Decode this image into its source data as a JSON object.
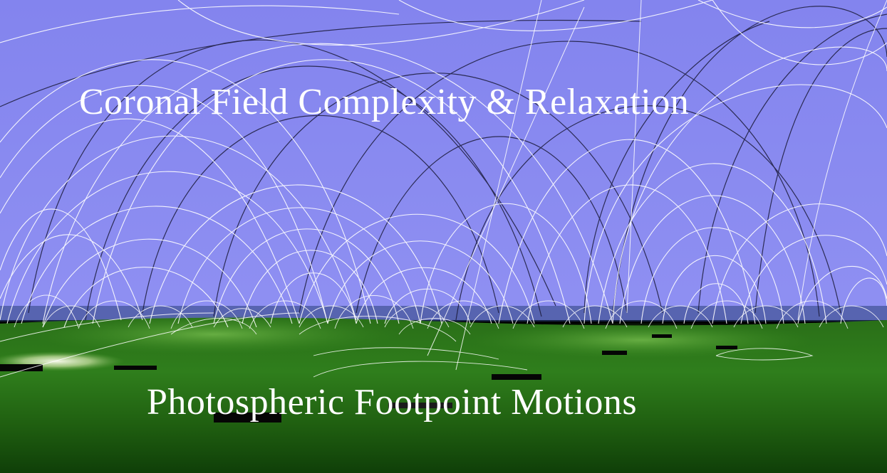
{
  "title_top": "Coronal Field Complexity & Relaxation",
  "title_bottom": "Photospheric Footpoint  Motions",
  "colors": {
    "sky": "#8b8cf0",
    "photosphere_dark": "#0f4208",
    "photosphere_mid": "#2c7b18",
    "photosphere_light": "#5aa338",
    "field_lines_light": "#ffffff",
    "field_lines_dark": "#1a1a33",
    "text": "#ffffff"
  }
}
